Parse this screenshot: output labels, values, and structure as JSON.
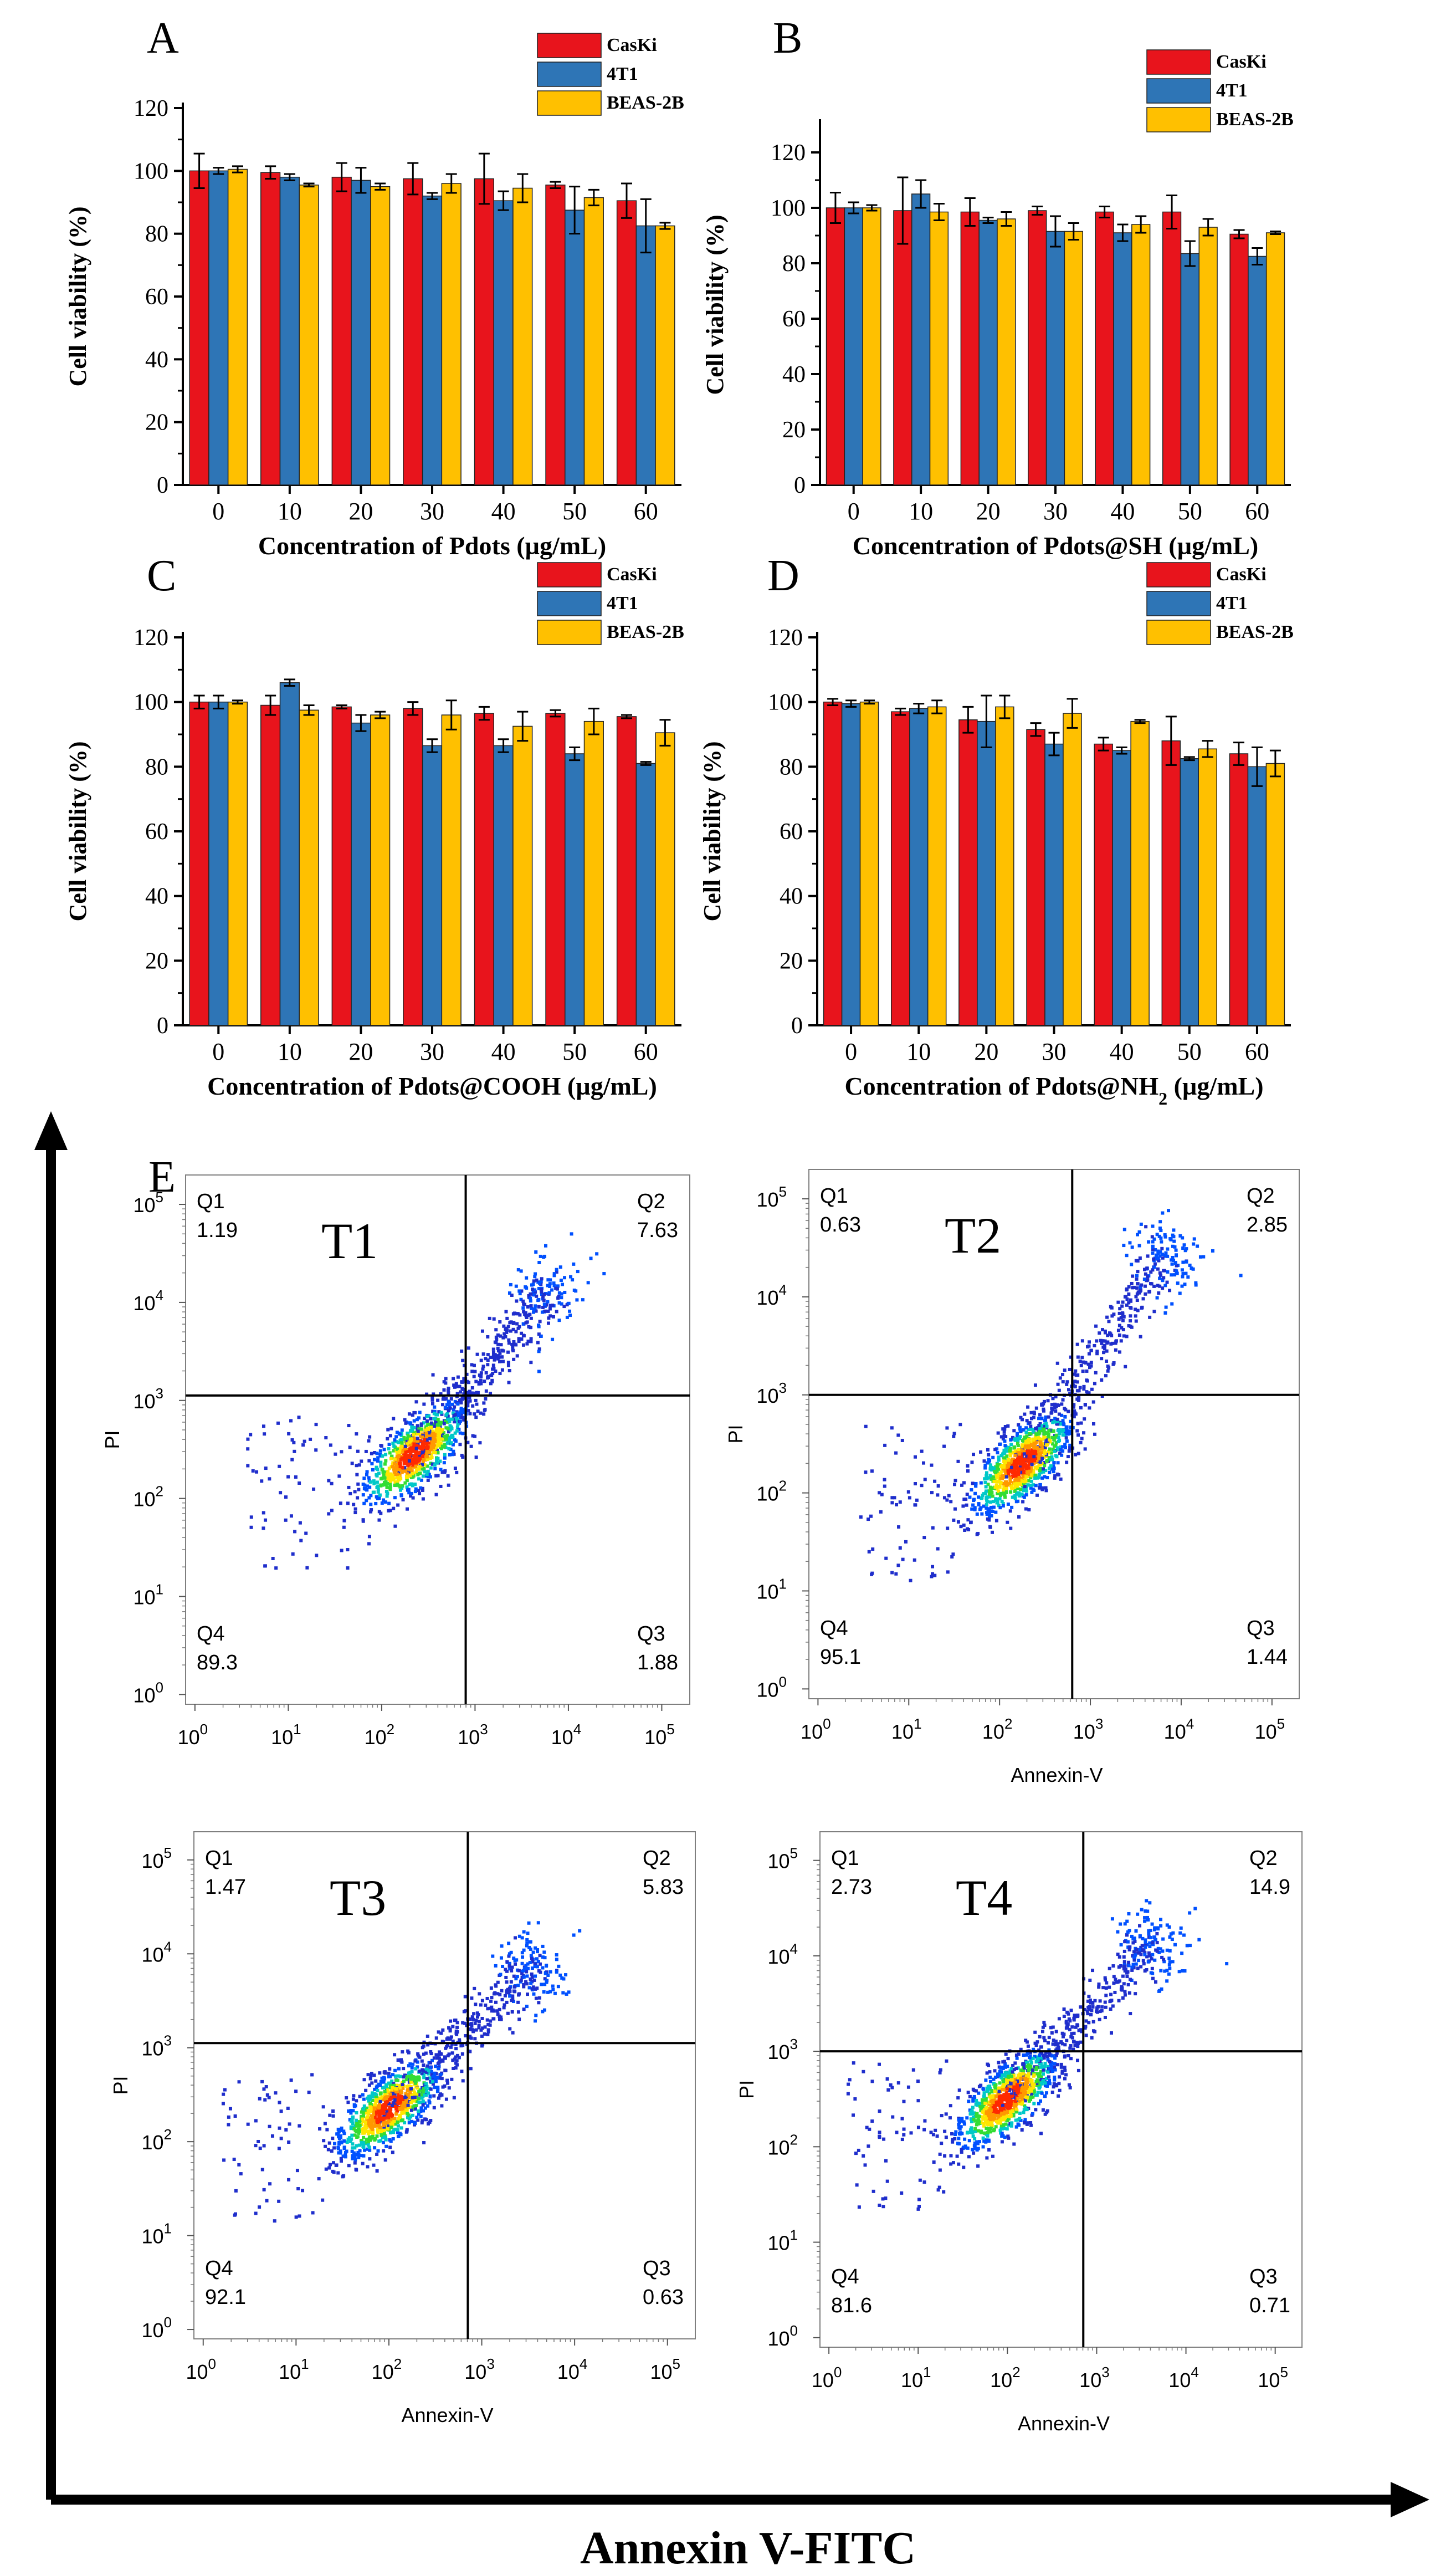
{
  "chart_data": [
    {
      "id": "A",
      "type": "bar",
      "panel_label": "A",
      "xlabel": "Concentration of Pdots (µg/mL)",
      "ylabel": "Cell viability (%)",
      "categories": [
        "0",
        "10",
        "20",
        "30",
        "40",
        "50",
        "60"
      ],
      "ylim": [
        0,
        120
      ],
      "yticks": [
        0,
        20,
        40,
        60,
        80,
        100,
        120
      ],
      "legend_position": "top-right",
      "series": [
        {
          "name": "CasKi",
          "color": "#e8141c",
          "values": [
            100,
            99.5,
            98,
            97.5,
            97.5,
            95.5,
            90.5
          ],
          "errors": [
            5.5,
            2,
            4.5,
            5,
            8,
            1,
            5.5
          ]
        },
        {
          "name": "4T1",
          "color": "#2e75b6",
          "values": [
            100,
            98,
            97,
            92,
            90.5,
            87.5,
            82.5
          ],
          "errors": [
            1,
            1,
            4,
            1,
            3,
            7.5,
            8.5
          ]
        },
        {
          "name": "BEAS-2B",
          "color": "#ffc000",
          "values": [
            100.5,
            95.5,
            95,
            96,
            94.5,
            91.5,
            82.5
          ],
          "errors": [
            1,
            0.5,
            1,
            3,
            4.5,
            2.5,
            1
          ]
        }
      ]
    },
    {
      "id": "B",
      "type": "bar",
      "panel_label": "B",
      "xlabel": "Concentration of Pdots@SH (µg/mL)",
      "ylabel": "Cell viability (%)",
      "categories": [
        "0",
        "10",
        "20",
        "30",
        "40",
        "50",
        "60"
      ],
      "ylim": [
        0,
        130
      ],
      "yticks": [
        0,
        20,
        40,
        60,
        80,
        100,
        120
      ],
      "legend_position": "top-right",
      "series": [
        {
          "name": "CasKi",
          "color": "#e8141c",
          "values": [
            100,
            99,
            98.5,
            99,
            98.5,
            98.5,
            90.5
          ],
          "errors": [
            5.5,
            12,
            5,
            1.5,
            2,
            6,
            1.5
          ]
        },
        {
          "name": "4T1",
          "color": "#2e75b6",
          "values": [
            100,
            105,
            95.5,
            91.5,
            91,
            83.5,
            82.5
          ],
          "errors": [
            2,
            5,
            1,
            5.5,
            3,
            4.5,
            3
          ]
        },
        {
          "name": "BEAS-2B",
          "color": "#ffc000",
          "values": [
            100,
            98.5,
            96,
            91.5,
            94,
            93,
            91
          ],
          "errors": [
            1,
            3,
            2.5,
            3,
            3,
            3,
            0.5
          ]
        }
      ]
    },
    {
      "id": "C",
      "type": "bar",
      "panel_label": "C",
      "xlabel": "Concentration of Pdots@COOH (µg/mL)",
      "ylabel": "Cell viability (%)",
      "categories": [
        "0",
        "10",
        "20",
        "30",
        "40",
        "50",
        "60"
      ],
      "ylim": [
        0,
        120
      ],
      "yticks": [
        0,
        20,
        40,
        60,
        80,
        100,
        120
      ],
      "legend_position": "top-right",
      "series": [
        {
          "name": "CasKi",
          "color": "#e8141c",
          "values": [
            100,
            99,
            98.5,
            98,
            96.5,
            96.5,
            95.5
          ],
          "errors": [
            2,
            3,
            0.5,
            2,
            2,
            1,
            0.5
          ]
        },
        {
          "name": "4T1",
          "color": "#2e75b6",
          "values": [
            100,
            106,
            93.5,
            86.5,
            86.5,
            84,
            81
          ],
          "errors": [
            2,
            1,
            2.5,
            2,
            2,
            2,
            0.5
          ]
        },
        {
          "name": "BEAS-2B",
          "color": "#ffc000",
          "values": [
            100,
            97.5,
            96,
            96,
            92.5,
            94,
            90.5
          ],
          "errors": [
            0.5,
            1.5,
            1,
            4.5,
            4.5,
            4,
            4
          ]
        }
      ]
    },
    {
      "id": "D",
      "type": "bar",
      "panel_label": "D",
      "xlabel": "Concentration of Pdots@NH",
      "xlabel_sub": "2",
      "xlabel_tail": " (µg/mL)",
      "ylabel": "Cell viability (%)",
      "categories": [
        "0",
        "10",
        "20",
        "30",
        "40",
        "50",
        "60"
      ],
      "ylim": [
        0,
        120
      ],
      "yticks": [
        0,
        20,
        40,
        60,
        80,
        100,
        120
      ],
      "legend_position": "top-right",
      "series": [
        {
          "name": "CasKi",
          "color": "#e8141c",
          "values": [
            100,
            97,
            94.5,
            91.5,
            87,
            88,
            84
          ],
          "errors": [
            1,
            1,
            4,
            2,
            2,
            7.5,
            3.5
          ]
        },
        {
          "name": "4T1",
          "color": "#2e75b6",
          "values": [
            99.5,
            98,
            94,
            87,
            85,
            82.5,
            80
          ],
          "errors": [
            1,
            1.5,
            8,
            3.5,
            1,
            0.5,
            6
          ]
        },
        {
          "name": "BEAS-2B",
          "color": "#ffc000",
          "values": [
            100,
            98.5,
            98.5,
            96.5,
            94,
            85.5,
            81
          ],
          "errors": [
            0.5,
            2,
            3.5,
            4.5,
            0.5,
            2.5,
            4
          ]
        }
      ]
    }
  ],
  "flow": {
    "panel_label": "E",
    "main_axis_label": "Annexin V-FITC",
    "decade_labels": [
      "10",
      "10",
      "10",
      "10",
      "10",
      "10"
    ],
    "decade_exponents": [
      "0",
      "1",
      "2",
      "3",
      "4",
      "5"
    ],
    "plots": [
      {
        "id": "T1",
        "title": "T1",
        "q1_label": "Q1",
        "q1": "1.19",
        "q2_label": "Q2",
        "q2": "7.63",
        "q3_label": "Q3",
        "q3": "1.88",
        "q4_label": "Q4",
        "q4": "89.3",
        "xlabel": "",
        "ylabel": "PI",
        "gate_x_decade": 2.9,
        "gate_y_decade": 3.05,
        "cluster": {
          "lo_x": 2.35,
          "lo_y": 2.45,
          "hi_x": 3.8,
          "hi_y": 4.1
        }
      },
      {
        "id": "T2",
        "title": "T2",
        "q1_label": "Q1",
        "q1": "0.63",
        "q2_label": "Q2",
        "q2": "2.85",
        "q3_label": "Q3",
        "q3": "1.44",
        "q4_label": "Q4",
        "q4": "95.1",
        "xlabel": "Annexin-V",
        "ylabel": "PI",
        "gate_x_decade": 2.8,
        "gate_y_decade": 3.0,
        "cluster": {
          "lo_x": 2.25,
          "lo_y": 2.3,
          "hi_x": 3.8,
          "hi_y": 4.4
        }
      },
      {
        "id": "T3",
        "title": "T3",
        "q1_label": "Q1",
        "q1": "1.47",
        "q2_label": "Q2",
        "q2": "5.83",
        "q3_label": "Q3",
        "q3": "0.63",
        "q4_label": "Q4",
        "q4": "92.1",
        "xlabel": "Annexin-V",
        "ylabel": "PI",
        "gate_x_decade": 2.85,
        "gate_y_decade": 3.05,
        "cluster": {
          "lo_x": 2.0,
          "lo_y": 2.35,
          "hi_x": 3.55,
          "hi_y": 3.85
        }
      },
      {
        "id": "T4",
        "title": "T4",
        "q1_label": "Q1",
        "q1": "2.73",
        "q2_label": "Q2",
        "q2": "14.9",
        "q3_label": "Q3",
        "q3": "0.71",
        "q4_label": "Q4",
        "q4": "81.6",
        "xlabel": "Annexin-V",
        "ylabel": "PI",
        "gate_x_decade": 2.85,
        "gate_y_decade": 3.0,
        "cluster": {
          "lo_x": 2.0,
          "lo_y": 2.5,
          "hi_x": 3.6,
          "hi_y": 4.1
        }
      }
    ]
  }
}
